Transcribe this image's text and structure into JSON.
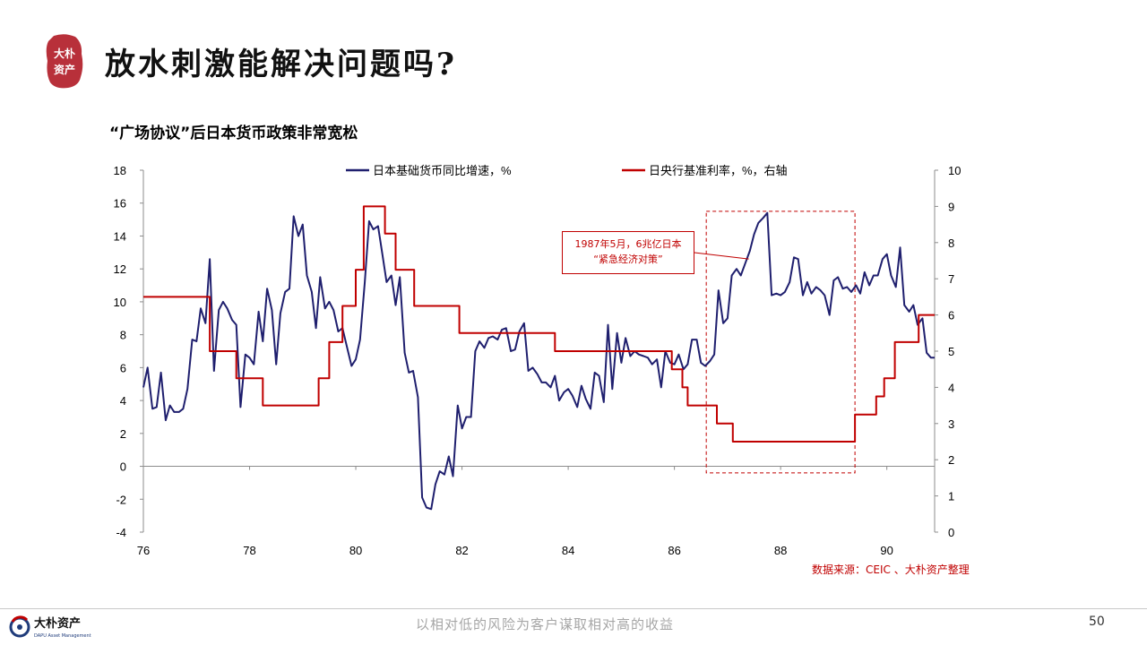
{
  "header": {
    "title": "放水刺激能解决问题吗?",
    "seal_text": [
      "大朴",
      "资产"
    ]
  },
  "chart_title": "“广场协议”后日本货币政策非常宽松",
  "source_note": "数据来源：CEIC 、大朴资产整理",
  "footer": {
    "logo_name": "大朴资产",
    "logo_sub": "DAPU Asset Management",
    "slogan": "以相对低的风险为客户谋取相对高的收益",
    "page_number": "50"
  },
  "colors": {
    "navy": "#1f1f6e",
    "red": "#c00000",
    "seal": "#b8303a"
  },
  "chart_data": {
    "type": "line",
    "x_range": [
      1976,
      1990.9
    ],
    "x_ticks": [
      "76",
      "78",
      "80",
      "82",
      "84",
      "86",
      "88",
      "90"
    ],
    "y_left_ticks": [
      "18",
      "16",
      "14",
      "12",
      "10",
      "8",
      "6",
      "4",
      "2",
      "0",
      "-2",
      "-4"
    ],
    "y_right_ticks": [
      "10",
      "9",
      "8",
      "7",
      "6",
      "5",
      "4",
      "3",
      "2",
      "1",
      "0"
    ],
    "ylim_left": [
      -4,
      18
    ],
    "ylim_right": [
      0,
      10
    ],
    "legend_placement": "top",
    "annotation": {
      "lines": [
        "1987年5月，6兆亿日本",
        "“紧急经济对策”"
      ],
      "x": 1987.4
    },
    "highlight_range": {
      "x": [
        1986.6,
        1989.4
      ],
      "y_left": [
        -0.4,
        15.5
      ]
    },
    "series": [
      {
        "name": "日本基础货币同比增速，%",
        "axis": "left",
        "color": "#1f1f6e",
        "points": [
          [
            1976.0,
            4.8
          ],
          [
            1976.08,
            6.0
          ],
          [
            1976.17,
            3.5
          ],
          [
            1976.25,
            3.6
          ],
          [
            1976.33,
            5.7
          ],
          [
            1976.42,
            2.8
          ],
          [
            1976.5,
            3.7
          ],
          [
            1976.58,
            3.3
          ],
          [
            1976.67,
            3.3
          ],
          [
            1976.75,
            3.5
          ],
          [
            1976.83,
            4.7
          ],
          [
            1976.92,
            7.7
          ],
          [
            1977.0,
            7.6
          ],
          [
            1977.08,
            9.6
          ],
          [
            1977.17,
            8.7
          ],
          [
            1977.25,
            12.6
          ],
          [
            1977.33,
            5.8
          ],
          [
            1977.42,
            9.5
          ],
          [
            1977.5,
            10.0
          ],
          [
            1977.58,
            9.6
          ],
          [
            1977.67,
            8.9
          ],
          [
            1977.75,
            8.6
          ],
          [
            1977.83,
            3.6
          ],
          [
            1977.92,
            6.8
          ],
          [
            1978.0,
            6.6
          ],
          [
            1978.08,
            6.2
          ],
          [
            1978.17,
            9.4
          ],
          [
            1978.25,
            7.6
          ],
          [
            1978.33,
            10.8
          ],
          [
            1978.42,
            9.5
          ],
          [
            1978.5,
            6.2
          ],
          [
            1978.58,
            9.3
          ],
          [
            1978.67,
            10.6
          ],
          [
            1978.75,
            10.8
          ],
          [
            1978.83,
            15.2
          ],
          [
            1978.92,
            14.0
          ],
          [
            1979.0,
            14.7
          ],
          [
            1979.08,
            11.6
          ],
          [
            1979.17,
            10.6
          ],
          [
            1979.25,
            8.4
          ],
          [
            1979.33,
            11.5
          ],
          [
            1979.42,
            9.6
          ],
          [
            1979.5,
            10.0
          ],
          [
            1979.58,
            9.5
          ],
          [
            1979.67,
            8.2
          ],
          [
            1979.75,
            8.4
          ],
          [
            1979.83,
            7.3
          ],
          [
            1979.92,
            6.1
          ],
          [
            1980.0,
            6.5
          ],
          [
            1980.08,
            7.7
          ],
          [
            1980.17,
            11.2
          ],
          [
            1980.25,
            14.9
          ],
          [
            1980.33,
            14.4
          ],
          [
            1980.42,
            14.6
          ],
          [
            1980.5,
            12.9
          ],
          [
            1980.58,
            11.2
          ],
          [
            1980.67,
            11.6
          ],
          [
            1980.75,
            9.8
          ],
          [
            1980.83,
            11.5
          ],
          [
            1980.92,
            6.9
          ],
          [
            1981.0,
            5.7
          ],
          [
            1981.08,
            5.8
          ],
          [
            1981.17,
            4.2
          ],
          [
            1981.25,
            -1.9
          ],
          [
            1981.33,
            -2.5
          ],
          [
            1981.42,
            -2.6
          ],
          [
            1981.5,
            -1.1
          ],
          [
            1981.58,
            -0.3
          ],
          [
            1981.67,
            -0.5
          ],
          [
            1981.75,
            0.6
          ],
          [
            1981.83,
            -0.6
          ],
          [
            1981.92,
            3.7
          ],
          [
            1982.0,
            2.3
          ],
          [
            1982.08,
            3.0
          ],
          [
            1982.17,
            3.0
          ],
          [
            1982.25,
            7.0
          ],
          [
            1982.33,
            7.6
          ],
          [
            1982.42,
            7.2
          ],
          [
            1982.5,
            7.8
          ],
          [
            1982.58,
            7.9
          ],
          [
            1982.67,
            7.7
          ],
          [
            1982.75,
            8.3
          ],
          [
            1982.83,
            8.4
          ],
          [
            1982.92,
            7.0
          ],
          [
            1983.0,
            7.1
          ],
          [
            1983.08,
            8.2
          ],
          [
            1983.17,
            8.7
          ],
          [
            1983.25,
            5.8
          ],
          [
            1983.33,
            6.0
          ],
          [
            1983.42,
            5.6
          ],
          [
            1983.5,
            5.1
          ],
          [
            1983.58,
            5.1
          ],
          [
            1983.67,
            4.8
          ],
          [
            1983.75,
            5.5
          ],
          [
            1983.83,
            4.0
          ],
          [
            1983.92,
            4.5
          ],
          [
            1984.0,
            4.7
          ],
          [
            1984.08,
            4.3
          ],
          [
            1984.17,
            3.6
          ],
          [
            1984.25,
            4.9
          ],
          [
            1984.33,
            4.1
          ],
          [
            1984.42,
            3.5
          ],
          [
            1984.5,
            5.7
          ],
          [
            1984.58,
            5.5
          ],
          [
            1984.67,
            3.9
          ],
          [
            1984.75,
            8.6
          ],
          [
            1984.83,
            4.7
          ],
          [
            1984.92,
            8.1
          ],
          [
            1985.0,
            6.3
          ],
          [
            1985.08,
            7.8
          ],
          [
            1985.17,
            6.7
          ],
          [
            1985.25,
            7.0
          ],
          [
            1985.33,
            6.8
          ],
          [
            1985.42,
            6.7
          ],
          [
            1985.5,
            6.6
          ],
          [
            1985.58,
            6.2
          ],
          [
            1985.67,
            6.5
          ],
          [
            1985.75,
            4.8
          ],
          [
            1985.83,
            7.0
          ],
          [
            1985.92,
            6.3
          ],
          [
            1986.0,
            6.2
          ],
          [
            1986.08,
            6.8
          ],
          [
            1986.17,
            5.9
          ],
          [
            1986.25,
            6.2
          ],
          [
            1986.33,
            7.7
          ],
          [
            1986.42,
            7.7
          ],
          [
            1986.5,
            6.3
          ],
          [
            1986.58,
            6.1
          ],
          [
            1986.67,
            6.4
          ],
          [
            1986.75,
            6.8
          ],
          [
            1986.83,
            10.7
          ],
          [
            1986.92,
            8.7
          ],
          [
            1987.0,
            9.0
          ],
          [
            1987.08,
            11.6
          ],
          [
            1987.17,
            12.0
          ],
          [
            1987.25,
            11.6
          ],
          [
            1987.33,
            12.3
          ],
          [
            1987.42,
            13.1
          ],
          [
            1987.5,
            14.1
          ],
          [
            1987.58,
            14.8
          ],
          [
            1987.67,
            15.1
          ],
          [
            1987.75,
            15.4
          ],
          [
            1987.83,
            10.4
          ],
          [
            1987.92,
            10.5
          ],
          [
            1988.0,
            10.4
          ],
          [
            1988.08,
            10.6
          ],
          [
            1988.17,
            11.2
          ],
          [
            1988.25,
            12.7
          ],
          [
            1988.33,
            12.6
          ],
          [
            1988.42,
            10.4
          ],
          [
            1988.5,
            11.2
          ],
          [
            1988.58,
            10.5
          ],
          [
            1988.67,
            10.9
          ],
          [
            1988.75,
            10.7
          ],
          [
            1988.83,
            10.4
          ],
          [
            1988.92,
            9.2
          ],
          [
            1989.0,
            11.3
          ],
          [
            1989.08,
            11.5
          ],
          [
            1989.17,
            10.8
          ],
          [
            1989.25,
            10.9
          ],
          [
            1989.33,
            10.6
          ],
          [
            1989.42,
            11.0
          ],
          [
            1989.5,
            10.5
          ],
          [
            1989.58,
            11.8
          ],
          [
            1989.67,
            11.0
          ],
          [
            1989.75,
            11.6
          ],
          [
            1989.83,
            11.6
          ],
          [
            1989.92,
            12.6
          ],
          [
            1990.0,
            12.9
          ],
          [
            1990.08,
            11.6
          ],
          [
            1990.17,
            10.9
          ],
          [
            1990.25,
            13.3
          ],
          [
            1990.33,
            9.8
          ],
          [
            1990.42,
            9.4
          ],
          [
            1990.5,
            9.8
          ],
          [
            1990.58,
            8.6
          ],
          [
            1990.67,
            9.0
          ],
          [
            1990.75,
            6.9
          ],
          [
            1990.83,
            6.6
          ],
          [
            1990.9,
            6.6
          ]
        ]
      },
      {
        "name": "日央行基准利率，%，右轴",
        "axis": "right",
        "color": "#c00000",
        "points": [
          [
            1976.0,
            6.5
          ],
          [
            1977.25,
            6.5
          ],
          [
            1977.25,
            5.0
          ],
          [
            1977.75,
            5.0
          ],
          [
            1977.75,
            4.25
          ],
          [
            1978.25,
            4.25
          ],
          [
            1978.25,
            3.5
          ],
          [
            1979.3,
            3.5
          ],
          [
            1979.3,
            4.25
          ],
          [
            1979.5,
            4.25
          ],
          [
            1979.5,
            5.25
          ],
          [
            1979.75,
            5.25
          ],
          [
            1979.75,
            6.25
          ],
          [
            1980.0,
            6.25
          ],
          [
            1980.0,
            7.25
          ],
          [
            1980.15,
            7.25
          ],
          [
            1980.15,
            9.0
          ],
          [
            1980.55,
            9.0
          ],
          [
            1980.55,
            8.25
          ],
          [
            1980.75,
            8.25
          ],
          [
            1980.75,
            7.25
          ],
          [
            1981.1,
            7.25
          ],
          [
            1981.1,
            6.25
          ],
          [
            1981.95,
            6.25
          ],
          [
            1981.95,
            5.5
          ],
          [
            1983.75,
            5.5
          ],
          [
            1983.75,
            5.0
          ],
          [
            1985.95,
            5.0
          ],
          [
            1985.95,
            4.5
          ],
          [
            1986.15,
            4.5
          ],
          [
            1986.15,
            4.0
          ],
          [
            1986.25,
            4.0
          ],
          [
            1986.25,
            3.5
          ],
          [
            1986.8,
            3.5
          ],
          [
            1986.8,
            3.0
          ],
          [
            1987.1,
            3.0
          ],
          [
            1987.1,
            2.5
          ],
          [
            1989.4,
            2.5
          ],
          [
            1989.4,
            3.25
          ],
          [
            1989.8,
            3.25
          ],
          [
            1989.8,
            3.75
          ],
          [
            1989.95,
            3.75
          ],
          [
            1989.95,
            4.25
          ],
          [
            1990.15,
            4.25
          ],
          [
            1990.15,
            5.25
          ],
          [
            1990.6,
            5.25
          ],
          [
            1990.6,
            6.0
          ],
          [
            1990.9,
            6.0
          ]
        ]
      }
    ]
  }
}
